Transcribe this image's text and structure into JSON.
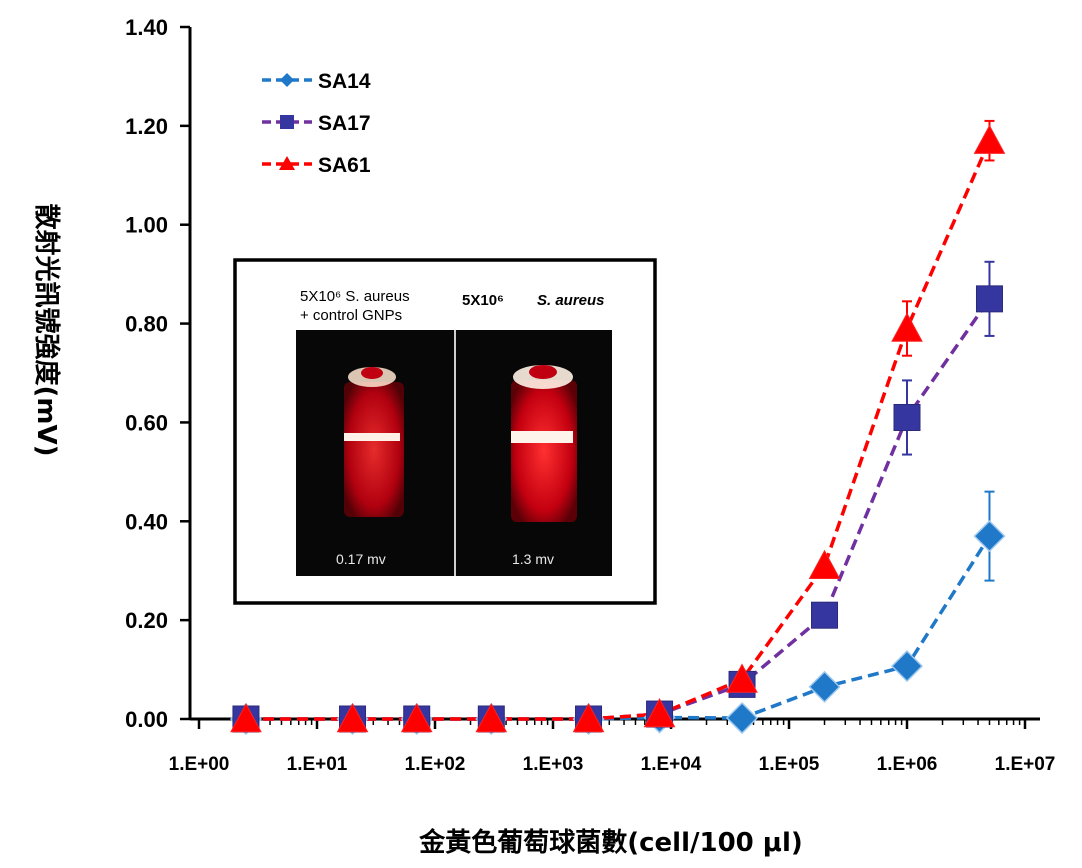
{
  "chart_data": {
    "type": "line",
    "title": "",
    "xlabel": "金黃色葡萄球菌數(cell/100 μl)",
    "ylabel": "散射光訊號強度(mV)",
    "x_scale": "log",
    "xlim": [
      1,
      10000000
    ],
    "ylim": [
      0,
      1.4
    ],
    "x_tick_labels": [
      "1.E+00",
      "1.E+01",
      "1.E+02",
      "1.E+03",
      "1.E+04",
      "1.E+05",
      "1.E+06",
      "1.E+07"
    ],
    "y_tick_labels": [
      "0.00",
      "0.20",
      "0.40",
      "0.60",
      "0.80",
      "1.00",
      "1.20",
      "1.40"
    ],
    "grid": false,
    "legend_position": "top-left",
    "x": [
      2.5,
      20,
      70,
      300,
      2000,
      8000,
      40000,
      200000,
      1000000,
      5000000
    ],
    "series": [
      {
        "name": "SA14",
        "color": "#1F78C8",
        "marker": "diamond",
        "values": [
          0.0,
          0.0,
          0.0,
          0.0,
          0.0,
          0.003,
          0.002,
          0.065,
          0.107,
          0.37
        ],
        "error": [
          0,
          0,
          0,
          0,
          0,
          0,
          0,
          0,
          0,
          0.09
        ]
      },
      {
        "name": "SA17",
        "color": "#7030A0",
        "marker_color": "#3636A0",
        "marker": "square",
        "values": [
          0.0,
          0.0,
          0.0,
          0.0,
          0.0,
          0.01,
          0.07,
          0.21,
          0.61,
          0.85
        ],
        "error": [
          0,
          0,
          0,
          0,
          0,
          0,
          0,
          0,
          0.075,
          0.075
        ]
      },
      {
        "name": "SA61",
        "color": "#FF0000",
        "marker": "triangle",
        "values": [
          0.0,
          0.0,
          0.0,
          0.0,
          0.0,
          0.01,
          0.08,
          0.31,
          0.79,
          1.17
        ],
        "error": [
          0,
          0,
          0,
          0,
          0,
          0,
          0,
          0,
          0.055,
          0.04
        ]
      }
    ]
  },
  "inset": {
    "left_caption_line1": "5X10⁶ S. aureus",
    "left_caption_line2": "+ control GNPs",
    "right_caption_count": "5X10⁶",
    "right_caption_species": "S. aureus",
    "left_reading": "0.17 mv",
    "right_reading": "1.3 mv"
  }
}
